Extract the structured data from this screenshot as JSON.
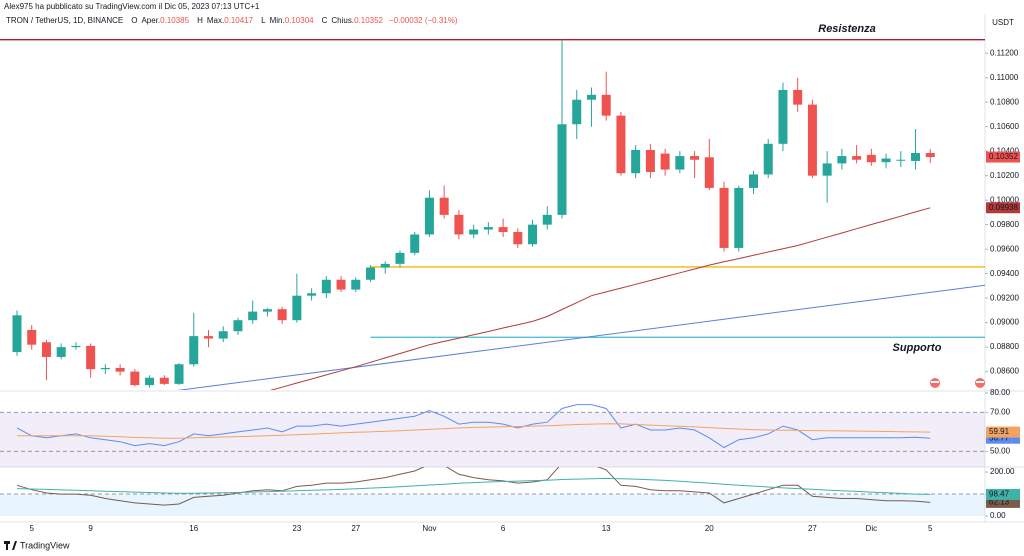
{
  "header": {
    "published": "Alex975 ha pubblicato su TradingView.com il Dic 05, 2023 07:13 UTC+1",
    "brand": "TradingView"
  },
  "legend": {
    "symbol": "TRON / TetherUS, 1D, BINANCE",
    "items": [
      {
        "key": "O",
        "name": "Aper.",
        "value": "0.10385"
      },
      {
        "key": "H",
        "name": "Max.",
        "value": "0.10417"
      },
      {
        "key": "L",
        "name": "Min.",
        "value": "0.10304"
      },
      {
        "key": "C",
        "name": "Chius.",
        "value": "0.10352"
      }
    ],
    "change": "−0.00032 (−0.31%)"
  },
  "chart_data": [
    {
      "type": "candlestick",
      "currency": "USDT",
      "categories": [
        null,
        "5",
        null,
        null,
        null,
        "9",
        null,
        null,
        null,
        null,
        null,
        null,
        "16",
        null,
        null,
        null,
        null,
        null,
        null,
        "23",
        null,
        null,
        null,
        "27",
        null,
        null,
        null,
        null,
        "Nov",
        null,
        null,
        null,
        null,
        "6",
        null,
        null,
        null,
        null,
        null,
        null,
        "13",
        null,
        null,
        null,
        null,
        null,
        null,
        "20",
        null,
        null,
        null,
        null,
        null,
        null,
        "27",
        null,
        null,
        null,
        "Dic",
        null,
        null,
        null,
        "5"
      ],
      "open": [
        0.0876,
        0.0894,
        0.0884,
        0.0872,
        0.088,
        0.0881,
        0.0862,
        0.0863,
        0.086,
        0.0849,
        0.0855,
        0.085,
        0.0866,
        0.0889,
        0.0887,
        0.0893,
        0.0902,
        0.0909,
        0.0911,
        0.0902,
        0.0922,
        0.0924,
        0.0935,
        0.0927,
        0.0935,
        0.0945,
        0.0948,
        0.0957,
        0.0972,
        0.1002,
        0.0988,
        0.0972,
        0.0976,
        0.0978,
        0.0974,
        0.0964,
        0.098,
        0.0988,
        0.1062,
        0.1082,
        0.1086,
        0.1069,
        0.1022,
        0.1041,
        0.1038,
        0.1025,
        0.1036,
        0.1035,
        0.101,
        0.0961,
        0.101,
        0.1021,
        0.1046,
        0.109,
        0.1078,
        0.102,
        0.103,
        0.1036,
        0.1037,
        0.1031,
        0.1033,
        0.1032,
        0.10385
      ],
      "high": [
        0.091,
        0.0898,
        0.0886,
        0.0883,
        0.0884,
        0.0883,
        0.0866,
        0.0866,
        0.0862,
        0.0857,
        0.0857,
        0.0867,
        0.0908,
        0.0894,
        0.0897,
        0.0904,
        0.0918,
        0.0912,
        0.0913,
        0.094,
        0.0928,
        0.0938,
        0.0938,
        0.0937,
        0.0947,
        0.095,
        0.0959,
        0.0974,
        0.1008,
        0.1012,
        0.0992,
        0.098,
        0.0982,
        0.0985,
        0.0977,
        0.0984,
        0.0995,
        0.1131,
        0.109,
        0.1092,
        0.1105,
        0.1072,
        0.1045,
        0.1046,
        0.1042,
        0.104,
        0.104,
        0.105,
        0.1015,
        0.1012,
        0.1024,
        0.105,
        0.1096,
        0.11,
        0.1082,
        0.104,
        0.1042,
        0.1045,
        0.1042,
        0.1038,
        0.104,
        0.1058,
        0.10417
      ],
      "low": [
        0.0873,
        0.0878,
        0.0853,
        0.087,
        0.0878,
        0.0855,
        0.0858,
        0.0857,
        0.0848,
        0.0847,
        0.0849,
        0.0849,
        0.0864,
        0.088,
        0.0884,
        0.089,
        0.0899,
        0.0905,
        0.0899,
        0.09,
        0.0918,
        0.092,
        0.0925,
        0.0925,
        0.0933,
        0.094,
        0.0945,
        0.0955,
        0.097,
        0.0985,
        0.0968,
        0.0969,
        0.0972,
        0.097,
        0.0961,
        0.0962,
        0.0976,
        0.0985,
        0.105,
        0.106,
        0.1065,
        0.102,
        0.1018,
        0.1018,
        0.102,
        0.1022,
        0.1018,
        0.1008,
        0.0958,
        0.0958,
        0.1005,
        0.1018,
        0.104,
        0.1072,
        0.1018,
        0.0998,
        0.1025,
        0.103,
        0.1028,
        0.1026,
        0.1027,
        0.1025,
        0.10304
      ],
      "close": [
        0.0906,
        0.0882,
        0.0872,
        0.088,
        0.0881,
        0.0862,
        0.0863,
        0.086,
        0.0849,
        0.0855,
        0.085,
        0.0866,
        0.0889,
        0.0887,
        0.0893,
        0.0902,
        0.0909,
        0.0911,
        0.0902,
        0.0922,
        0.0924,
        0.0935,
        0.0927,
        0.0935,
        0.0945,
        0.0948,
        0.0957,
        0.0972,
        0.1002,
        0.0988,
        0.0972,
        0.0976,
        0.0978,
        0.0974,
        0.0964,
        0.098,
        0.0988,
        0.1062,
        0.1082,
        0.1086,
        0.1069,
        0.1022,
        0.1041,
        0.1023,
        0.1025,
        0.1036,
        0.1033,
        0.101,
        0.0961,
        0.101,
        0.1021,
        0.1046,
        0.109,
        0.1078,
        0.102,
        0.103,
        0.1036,
        0.1033,
        0.1031,
        0.1034,
        0.1033,
        0.10385,
        0.10352
      ],
      "up_color": "#26a69a",
      "down_color": "#ef5350",
      "series": [
        {
          "color": "#b23a3a",
          "values": [
            null,
            null,
            null,
            null,
            null,
            null,
            null,
            null,
            null,
            null,
            null,
            null,
            null,
            null,
            null,
            null,
            null,
            0.0844,
            0.08473,
            0.08507,
            0.0854,
            0.08573,
            0.08607,
            0.0864,
            0.08676,
            0.08712,
            0.08748,
            0.08784,
            0.0882,
            0.08847,
            0.08874,
            0.08901,
            0.08928,
            0.08956,
            0.08983,
            0.0901,
            0.0905,
            0.09107,
            0.09163,
            0.0922,
            0.09251,
            0.09282,
            0.09313,
            0.09344,
            0.09376,
            0.09407,
            0.09438,
            0.0947,
            0.09497,
            0.09523,
            0.0955,
            0.09577,
            0.09603,
            0.0963,
            0.09664,
            0.09698,
            0.09732,
            0.09767,
            0.09801,
            0.09835,
            0.09869,
            0.09904,
            0.09938
          ]
        }
      ],
      "levels": [
        {
          "value": 0.1131,
          "color": "#b2182b",
          "from": null
        },
        {
          "value": 0.09455,
          "color": "#f0b90b",
          "from": 24
        },
        {
          "value": 0.0888,
          "color": "#4fc3d8",
          "from": 24
        }
      ],
      "trend_line": {
        "start": [
          10.5,
          0.0844
        ],
        "end": [
          66,
          0.0931
        ],
        "color": "#5b7fd6"
      },
      "annotations": [
        {
          "text": "Resistenza",
          "color": "#e0566c"
        },
        {
          "text": "Supporto",
          "color": "#4a7fd6"
        }
      ],
      "ylim": [
        0.0845,
        0.1152
      ],
      "yticks": [
        {
          "value": 0.086,
          "label": "0.08600"
        },
        {
          "value": 0.088,
          "label": "0.08800"
        },
        {
          "value": 0.09,
          "label": "0.09000"
        },
        {
          "value": 0.092,
          "label": "0.09200"
        },
        {
          "value": 0.094,
          "label": "0.09400"
        },
        {
          "value": 0.096,
          "label": "0.09600"
        },
        {
          "value": 0.098,
          "label": "0.09800"
        },
        {
          "value": 0.1,
          "label": "0.10000"
        },
        {
          "value": 0.102,
          "label": "0.10200"
        },
        {
          "value": 0.104,
          "label": "0.10400"
        },
        {
          "value": 0.106,
          "label": "0.10600"
        },
        {
          "value": 0.108,
          "label": "0.10800"
        },
        {
          "value": 0.11,
          "label": "0.11000"
        },
        {
          "value": 0.112,
          "label": "0.11200"
        }
      ],
      "grid": false
    },
    {
      "type": "line",
      "series": [
        {
          "color": "#5b8def",
          "values": [
            62,
            58,
            57,
            58,
            59,
            57,
            56,
            55,
            53,
            54,
            53,
            55,
            59,
            58,
            59,
            60,
            61,
            62,
            60,
            63,
            63,
            64,
            63,
            64,
            65,
            66,
            67,
            68,
            71,
            68,
            64,
            65,
            65,
            64,
            62,
            64,
            65,
            72,
            74,
            74,
            72,
            62,
            64,
            61,
            61,
            62,
            61,
            57,
            52,
            56,
            57,
            59,
            63,
            61,
            56,
            57,
            57,
            57,
            57,
            57,
            57,
            57.3,
            56.77
          ]
        },
        {
          "color": "#f4a261",
          "values": [
            58,
            58,
            58,
            58,
            58,
            58,
            57.8,
            57.5,
            57.2,
            57,
            56.8,
            56.8,
            57,
            57.2,
            57.4,
            57.6,
            57.8,
            58,
            58.3,
            58.6,
            58.9,
            59.2,
            59.5,
            59.8,
            60,
            60.3,
            60.6,
            61,
            61.3,
            61.7,
            62,
            62.3,
            62.5,
            62.7,
            62.8,
            63,
            63.2,
            63.5,
            63.8,
            64,
            64.2,
            64.1,
            63.8,
            63.5,
            63.2,
            62.9,
            62.6,
            62.2,
            61.8,
            61.5,
            61.2,
            61,
            60.9,
            60.8,
            60.7,
            60.6,
            60.5,
            60.4,
            60.3,
            60.2,
            60.1,
            60,
            59.91
          ]
        }
      ],
      "band": [
        30,
        70
      ],
      "band_color": "#7e57c2",
      "levels": [
        70,
        50
      ],
      "ylim": [
        42,
        81
      ],
      "yticks": [
        {
          "value": 50,
          "label": "50.00"
        },
        {
          "value": 70,
          "label": "70.00"
        },
        {
          "value": 80,
          "label": "80.00"
        }
      ]
    },
    {
      "type": "line",
      "series": [
        {
          "color": "#7a5c4a",
          "values": [
            140,
            120,
            105,
            100,
            100,
            95,
            80,
            70,
            60,
            55,
            50,
            55,
            85,
            90,
            95,
            105,
            115,
            120,
            115,
            135,
            140,
            150,
            150,
            155,
            165,
            175,
            190,
            205,
            235,
            230,
            190,
            175,
            165,
            160,
            150,
            155,
            165,
            240,
            245,
            235,
            210,
            140,
            135,
            120,
            115,
            115,
            110,
            105,
            60,
            80,
            100,
            120,
            140,
            140,
            90,
            85,
            80,
            80,
            75,
            70,
            70,
            68,
            62.13
          ]
        },
        {
          "color": "#3fb3a8",
          "values": [
            125,
            123,
            121,
            119,
            117,
            115,
            113,
            111,
            109,
            107,
            105,
            104,
            104,
            105,
            106,
            107,
            109,
            111,
            113,
            115,
            117,
            119,
            121,
            124,
            127,
            130,
            133,
            137,
            141,
            145,
            149,
            152,
            155,
            157,
            159,
            161,
            163,
            166,
            168,
            170,
            171,
            170,
            168,
            165,
            162,
            158,
            154,
            150,
            145,
            140,
            136,
            132,
            128,
            125,
            122,
            118,
            115,
            112,
            109,
            106,
            103,
            100,
            98.47
          ]
        }
      ],
      "band": [
        0,
        100
      ],
      "band_color": "#2196f3",
      "levels": [
        100
      ],
      "ylim": [
        -27,
        223
      ],
      "yticks": [
        {
          "value": 0,
          "label": "0.00"
        },
        {
          "value": 100,
          "label": "100.00"
        },
        {
          "value": 200,
          "label": "200.00"
        }
      ]
    }
  ]
}
